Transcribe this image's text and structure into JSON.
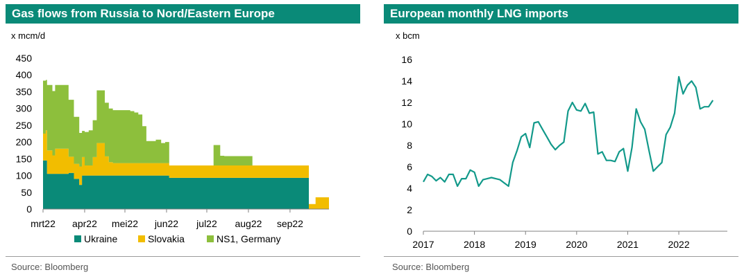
{
  "left": {
    "title": "Gas flows from Russia to Nord/Eastern Europe",
    "unit": "x mcm/d",
    "source": "Source: Bloomberg"
  },
  "right": {
    "title": "European monthly LNG imports",
    "unit": "x bcm",
    "source": "Source: Bloomberg"
  },
  "colors": {
    "header": "#0a8a78",
    "ukraine": "#0a8a78",
    "slovakia": "#f2bd00",
    "ns1": "#8dbf3c",
    "lng_line": "#12998a"
  },
  "chart_data": [
    {
      "type": "area",
      "stacked": true,
      "title": "Gas flows from Russia to Nord/Eastern Europe",
      "ylabel": "x mcm/d",
      "ylim": [
        0,
        450
      ],
      "yticks": [
        0,
        50,
        100,
        150,
        200,
        250,
        300,
        350,
        400,
        450
      ],
      "x_start": "2022-03-01",
      "x_end": "2022-09-30",
      "xticks": [
        {
          "label": "mrt22",
          "date": "2022-03-01"
        },
        {
          "label": "apr22",
          "date": "2022-04-01"
        },
        {
          "label": "mei22",
          "date": "2022-05-01"
        },
        {
          "label": "jun22",
          "date": "2022-06-01"
        },
        {
          "label": "jul22",
          "date": "2022-07-01"
        },
        {
          "label": "aug22",
          "date": "2022-08-01"
        },
        {
          "label": "sep22",
          "date": "2022-09-01"
        }
      ],
      "dates": [
        "2022-03-01",
        "2022-03-03",
        "2022-03-04",
        "2022-03-08",
        "2022-03-10",
        "2022-03-14",
        "2022-03-16",
        "2022-03-20",
        "2022-03-24",
        "2022-03-28",
        "2022-03-30",
        "2022-04-01",
        "2022-04-04",
        "2022-04-07",
        "2022-04-10",
        "2022-04-13",
        "2022-04-16",
        "2022-04-19",
        "2022-04-22",
        "2022-04-25",
        "2022-04-28",
        "2022-05-01",
        "2022-05-05",
        "2022-05-08",
        "2022-05-11",
        "2022-05-14",
        "2022-05-17",
        "2022-05-20",
        "2022-05-24",
        "2022-05-28",
        "2022-05-31",
        "2022-06-03",
        "2022-06-08",
        "2022-06-13",
        "2022-06-17",
        "2022-06-21",
        "2022-06-25",
        "2022-07-01",
        "2022-07-06",
        "2022-07-11",
        "2022-07-14",
        "2022-07-17",
        "2022-07-20",
        "2022-07-25",
        "2022-07-31",
        "2022-08-04",
        "2022-08-10",
        "2022-08-20",
        "2022-08-31",
        "2022-09-05",
        "2022-09-08",
        "2022-09-10",
        "2022-09-15",
        "2022-09-20",
        "2022-09-25",
        "2022-09-30"
      ],
      "series": [
        {
          "name": "Ukraine",
          "values": [
            145,
            145,
            105,
            105,
            105,
            105,
            105,
            108,
            90,
            72,
            100,
            100,
            100,
            100,
            100,
            100,
            100,
            100,
            100,
            100,
            100,
            100,
            100,
            100,
            100,
            100,
            100,
            100,
            100,
            100,
            100,
            93,
            93,
            93,
            93,
            93,
            93,
            93,
            93,
            93,
            93,
            93,
            93,
            93,
            93,
            93,
            93,
            93,
            93,
            93,
            93,
            93,
            0,
            0,
            0,
            0
          ]
        },
        {
          "name": "Slovakia",
          "values": [
            80,
            90,
            70,
            55,
            75,
            75,
            75,
            48,
            45,
            55,
            55,
            30,
            30,
            55,
            97,
            97,
            57,
            40,
            37,
            37,
            37,
            37,
            37,
            37,
            37,
            37,
            37,
            37,
            37,
            37,
            37,
            37,
            37,
            37,
            37,
            37,
            37,
            37,
            37,
            37,
            37,
            37,
            37,
            37,
            37,
            37,
            37,
            37,
            37,
            37,
            37,
            37,
            15,
            35,
            35,
            35
          ]
        },
        {
          "name": "NS1, Germany",
          "values": [
            158,
            150,
            195,
            192,
            190,
            190,
            190,
            170,
            140,
            100,
            78,
            100,
            105,
            110,
            157,
            157,
            160,
            160,
            158,
            158,
            158,
            158,
            155,
            151,
            145,
            110,
            66,
            66,
            70,
            60,
            63,
            0,
            0,
            0,
            0,
            0,
            0,
            0,
            61,
            29,
            28,
            28,
            28,
            28,
            28,
            0,
            0,
            0,
            0,
            0,
            0,
            0,
            0,
            0,
            0,
            0
          ]
        }
      ],
      "legend": [
        "Ukraine",
        "Slovakia",
        "NS1, Germany"
      ],
      "legend_position": "bottom"
    },
    {
      "type": "line",
      "title": "European monthly LNG imports",
      "ylabel": "x bcm",
      "ylim": [
        0,
        16
      ],
      "yticks": [
        0,
        2,
        4,
        6,
        8,
        10,
        12,
        14,
        16
      ],
      "xlim": [
        2017,
        2022.95
      ],
      "xticks": [
        2017,
        2018,
        2019,
        2020,
        2021,
        2022
      ],
      "x": [
        2017.0,
        2017.083,
        2017.167,
        2017.25,
        2017.333,
        2017.417,
        2017.5,
        2017.583,
        2017.667,
        2017.75,
        2017.833,
        2017.917,
        2018.0,
        2018.083,
        2018.167,
        2018.25,
        2018.333,
        2018.417,
        2018.5,
        2018.583,
        2018.667,
        2018.75,
        2018.833,
        2018.917,
        2019.0,
        2019.083,
        2019.167,
        2019.25,
        2019.333,
        2019.417,
        2019.5,
        2019.583,
        2019.667,
        2019.75,
        2019.833,
        2019.917,
        2020.0,
        2020.083,
        2020.167,
        2020.25,
        2020.333,
        2020.417,
        2020.5,
        2020.583,
        2020.667,
        2020.75,
        2020.833,
        2020.917,
        2021.0,
        2021.083,
        2021.167,
        2021.25,
        2021.333,
        2021.417,
        2021.5,
        2021.583,
        2021.667,
        2021.75,
        2021.833,
        2021.917,
        2022.0,
        2022.083,
        2022.167,
        2022.25,
        2022.333,
        2022.417,
        2022.5,
        2022.583,
        2022.667
      ],
      "values": [
        4.6,
        5.3,
        5.1,
        4.7,
        5.0,
        4.6,
        5.3,
        5.3,
        4.2,
        4.9,
        4.9,
        5.7,
        5.5,
        4.2,
        4.8,
        4.9,
        5.0,
        4.9,
        4.8,
        4.5,
        4.2,
        6.4,
        7.5,
        8.8,
        9.1,
        7.8,
        10.1,
        10.2,
        9.5,
        8.8,
        8.1,
        7.6,
        8.0,
        8.3,
        11.2,
        12.0,
        11.3,
        11.2,
        11.9,
        11.0,
        11.1,
        7.2,
        7.4,
        6.6,
        6.6,
        6.5,
        7.4,
        7.7,
        5.6,
        7.8,
        11.4,
        10.2,
        9.5,
        7.5,
        5.6,
        6.0,
        6.4,
        9.0,
        9.7,
        11.0,
        14.4,
        12.8,
        13.6,
        14.0,
        13.4,
        11.4,
        11.6,
        11.6,
        12.2
      ],
      "grid": false
    }
  ]
}
